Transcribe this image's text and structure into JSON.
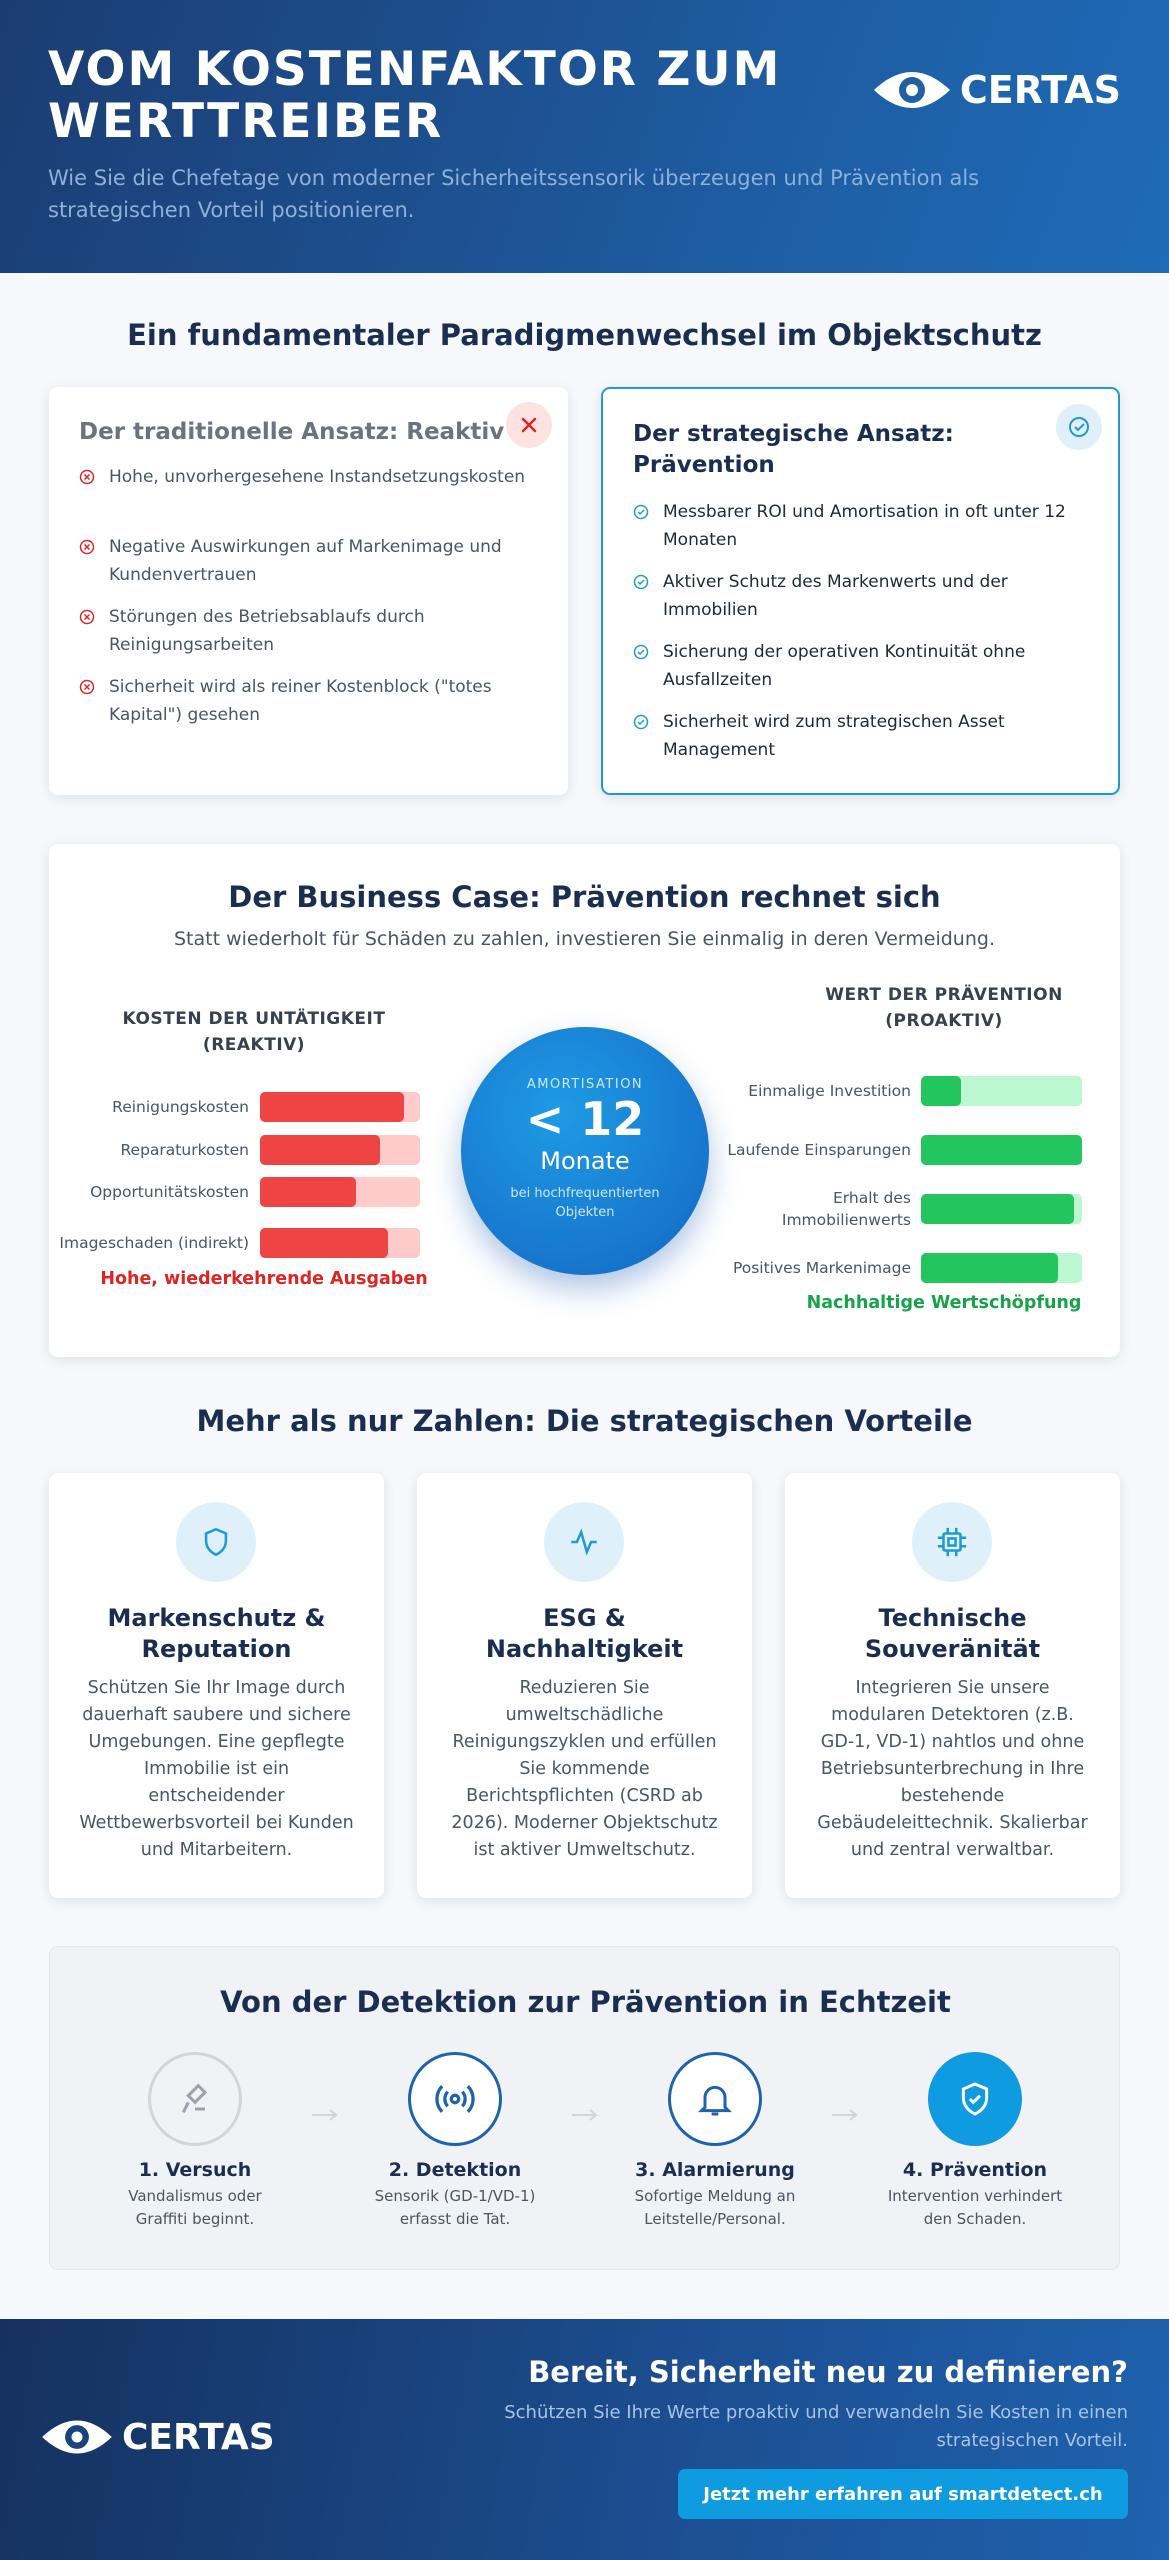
{
  "header": {
    "title": "VOM KOSTENFAKTOR ZUM WERTTREIBER",
    "subtitle": "Wie Sie die Chefetage von moderner Sicherheitssensorik überzeugen und Prävention als strategischen Vorteil positionieren.",
    "logo": "CERTAS"
  },
  "paradigm": {
    "title": "Ein fundamentaler Paradigmenwechsel im Objektschutz",
    "traditional": {
      "title": "Der traditionelle Ansatz: Reaktiv",
      "items": [
        "Hohe, unvorhergesehene Instandsetzungskosten",
        "Negative Auswirkungen auf Markenimage und Kundenvertrauen",
        "Störungen des Betriebsablaufs durch Reinigungsarbeiten",
        "Sicherheit wird als reiner Kostenblock (\"totes Kapital\") gesehen"
      ]
    },
    "strategic": {
      "title": "Der strategische Ansatz: Prävention",
      "items": [
        "Messbarer ROI und Amortisation in oft unter 12 Monaten",
        "Aktiver Schutz des Markenwerts und der Immobilien",
        "Sicherung der operativen Kontinuität ohne Ausfallzeiten",
        "Sicherheit wird zum strategischen Asset Management"
      ]
    }
  },
  "business_case": {
    "title": "Der Business Case: Prävention rechnet sich",
    "subtitle": "Statt wiederholt für Schäden zu zahlen, investieren Sie einmalig in deren Vermeidung.",
    "costs": {
      "title": "KOSTEN DER UNTÄTIGKEIT (REAKTIV)",
      "bars": [
        {
          "label": "Reinigungskosten",
          "value": 90
        },
        {
          "label": "Reparaturkosten",
          "value": 75
        },
        {
          "label": "Opportunitätskosten",
          "value": 60
        },
        {
          "label": "Imageschaden (indirekt)",
          "value": 80
        }
      ],
      "summary": "Hohe, wiederkehrende Ausgaben"
    },
    "badge": {
      "label": "AMORTISATION",
      "value": "< 12",
      "unit": "Monate",
      "note": "bei hochfrequentierten Objekten"
    },
    "prevention": {
      "title": "WERT DER PRÄVENTION (PROAKTIV)",
      "bars": [
        {
          "label": "Einmalige Investition",
          "value": 25
        },
        {
          "label": "Laufende Einsparungen",
          "value": 100
        },
        {
          "label": "Erhalt des Immobilienwerts",
          "value": 95
        },
        {
          "label": "Positives Markenimage",
          "value": 85
        }
      ],
      "summary": "Nachhaltige Wertschöpfung"
    }
  },
  "benefits": {
    "title": "Mehr als nur Zahlen: Die strategischen Vorteile",
    "cards": [
      {
        "title": "Markenschutz & Reputation",
        "text": "Schützen Sie Ihr Image durch dauerhaft saubere und sichere Umgebungen. Eine gepflegte Immobilie ist ein entscheidender Wettbewerbsvorteil bei Kunden und Mitarbeitern."
      },
      {
        "title": "ESG & Nachhaltigkeit",
        "text": "Reduzieren Sie umweltschädliche Reinigungszyklen und erfüllen Sie kommende Berichtspflichten (CSRD ab 2026). Moderner Objektschutz ist aktiver Umweltschutz."
      },
      {
        "title": "Technische Souveränität",
        "text": "Integrieren Sie unsere modularen Detektoren (z.B. GD-1, VD-1) nahtlos und ohne Betriebsunterbrechung in Ihre bestehende Gebäudeleittechnik. Skalierbar und zentral verwaltbar."
      }
    ]
  },
  "process": {
    "title": "Von der Detektion zur Prävention in Echtzeit",
    "steps": [
      {
        "title": "1. Versuch",
        "text": "Vandalismus oder Graffiti beginnt."
      },
      {
        "title": "2. Detektion",
        "text": "Sensorik (GD-1/VD-1) erfasst die Tat."
      },
      {
        "title": "3. Alarmierung",
        "text": "Sofortige Meldung an Leitstelle/Personal."
      },
      {
        "title": "4. Prävention",
        "text": "Intervention verhindert den Schaden."
      }
    ]
  },
  "footer": {
    "logo": "CERTAS",
    "title": "Bereit, Sicherheit neu zu definieren?",
    "text": "Schützen Sie Ihre Werte proaktiv und verwandeln Sie Kosten in einen strategischen Vorteil.",
    "button": "Jetzt mehr erfahren auf smartdetect.ch"
  }
}
